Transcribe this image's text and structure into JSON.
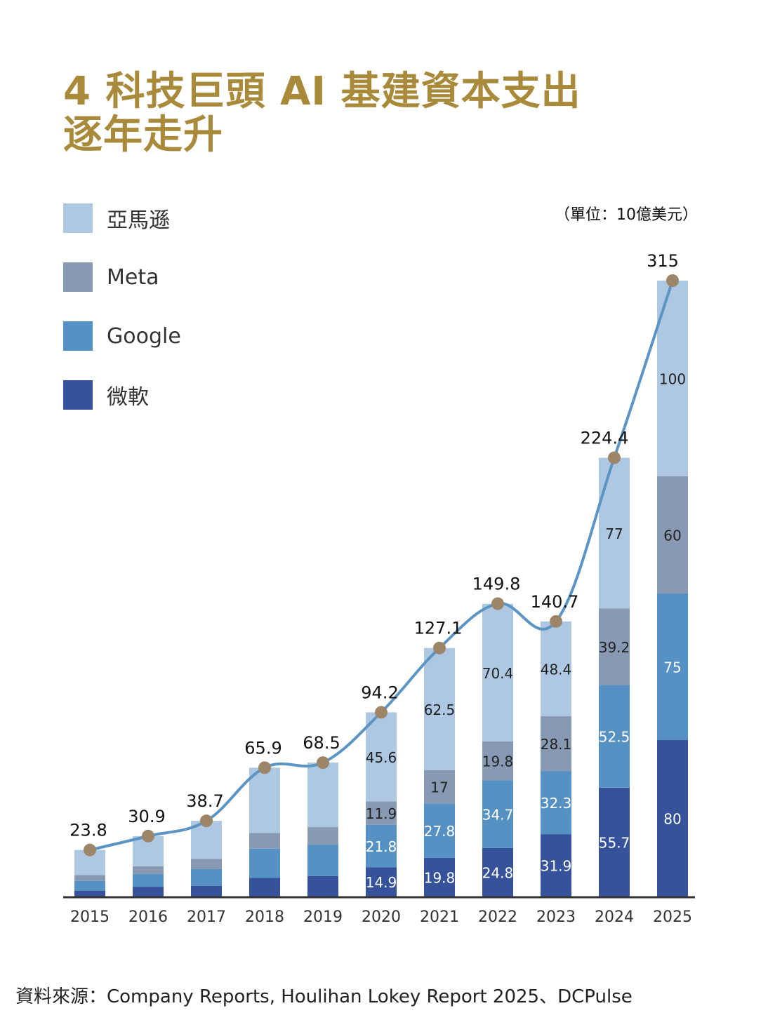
{
  "title_line1": "4 科技巨頭 AI 基建資本支出",
  "title_line2": "逐年走升",
  "unit": "（單位：10億美元）",
  "source": "資料來源：Company Reports, Houlihan Lokey Report 2025、DCPulse",
  "legend": [
    {
      "label": "亞馬遜",
      "color": "#aec7e2"
    },
    {
      "label": "Meta",
      "color": "#8899b4"
    },
    {
      "label": "Google",
      "color": "#5592c3"
    },
    {
      "label": "微軟",
      "color": "#35529a"
    }
  ],
  "colors": {
    "line": "#5c95c4",
    "dot": "#9d8667",
    "axis": "#333333",
    "title": "#a88a3a"
  },
  "chart_data": {
    "type": "bar",
    "stacked": true,
    "categories": [
      "2015",
      "2016",
      "2017",
      "2018",
      "2019",
      "2020",
      "2021",
      "2022",
      "2023",
      "2024",
      "2025"
    ],
    "series": [
      {
        "name": "微軟",
        "values": [
          3,
          5,
          5.5,
          9.5,
          10.5,
          14.9,
          19.8,
          24.8,
          31.9,
          55.7,
          80
        ],
        "labels": [
          "",
          "",
          "",
          "",
          "",
          "14.9",
          "19.8",
          "24.8",
          "31.9",
          "55.7",
          "80"
        ]
      },
      {
        "name": "Google",
        "values": [
          5,
          6.5,
          8.5,
          15,
          16,
          21.8,
          27.8,
          34.7,
          32.3,
          52.5,
          75
        ],
        "labels": [
          "",
          "",
          "",
          "",
          "",
          "21.8",
          "27.8",
          "34.7",
          "32.3",
          "52.5",
          "75"
        ]
      },
      {
        "name": "Meta",
        "values": [
          3,
          4,
          5.2,
          8,
          9,
          11.9,
          17,
          19.8,
          28.1,
          39.2,
          60
        ],
        "labels": [
          "",
          "",
          "",
          "",
          "",
          "11.9",
          "17",
          "19.8",
          "28.1",
          "39.2",
          "60"
        ]
      },
      {
        "name": "亞馬遜",
        "values": [
          12.8,
          15.4,
          19.5,
          33.4,
          33,
          45.6,
          62.5,
          70.4,
          48.4,
          77,
          100
        ],
        "labels": [
          "",
          "",
          "",
          "",
          "",
          "45.6",
          "62.5",
          "70.4",
          "48.4",
          "77",
          "100"
        ]
      }
    ],
    "totals": [
      23.8,
      30.9,
      38.7,
      65.9,
      68.5,
      94.2,
      127.1,
      149.8,
      140.7,
      224.4,
      315
    ],
    "total_labels": [
      "23.8",
      "30.9",
      "38.7",
      "65.9",
      "68.5",
      "94.2",
      "127.1",
      "149.8",
      "140.7",
      "224.4",
      "315"
    ],
    "ylim": [
      0,
      315
    ],
    "legend_position": "top-left"
  }
}
